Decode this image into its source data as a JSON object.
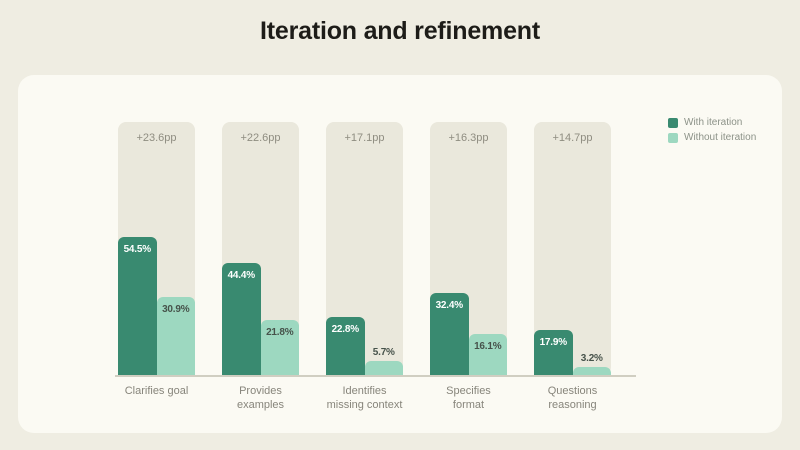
{
  "page": {
    "title": "Iteration and refinement"
  },
  "chart_data": {
    "type": "bar",
    "title": "Iteration and refinement",
    "categories": [
      "Clarifies goal",
      "Provides examples",
      "Identifies missing context",
      "Specifies format",
      "Questions reasoning"
    ],
    "category_lines": [
      [
        "Clarifies goal"
      ],
      [
        "Provides",
        "examples"
      ],
      [
        "Identifies",
        "missing context"
      ],
      [
        "Specifies",
        "format"
      ],
      [
        "Questions",
        "reasoning"
      ]
    ],
    "series": [
      {
        "name": "With iteration",
        "color": "#398a70",
        "values": [
          54.5,
          44.4,
          22.8,
          32.4,
          17.9
        ]
      },
      {
        "name": "Without iteration",
        "color": "#9dd8c0",
        "values": [
          30.9,
          21.8,
          5.7,
          16.1,
          3.2
        ]
      }
    ],
    "annotations": [
      "+23.6pp",
      "+22.6pp",
      "+17.1pp",
      "+16.3pp",
      "+14.7pp"
    ],
    "value_suffix": "%",
    "ylim": [
      0,
      100
    ],
    "grid": false,
    "legend_position": "top-right"
  },
  "legend": {
    "items": [
      {
        "label": "With iteration",
        "color": "#398a70"
      },
      {
        "label": "Without iteration",
        "color": "#9dd8c0"
      }
    ]
  },
  "colors": {
    "page_background": "#efede2",
    "card_background": "#fbfaf3",
    "track_background": "#eae8dc",
    "with_iteration": "#398a70",
    "without_iteration": "#9dd8c0",
    "baseline": "#d0cec1",
    "annotation_text": "#8f8d81",
    "category_text": "#87857b",
    "light_value_text": "#46524a",
    "title_text": "#1d1c18"
  }
}
